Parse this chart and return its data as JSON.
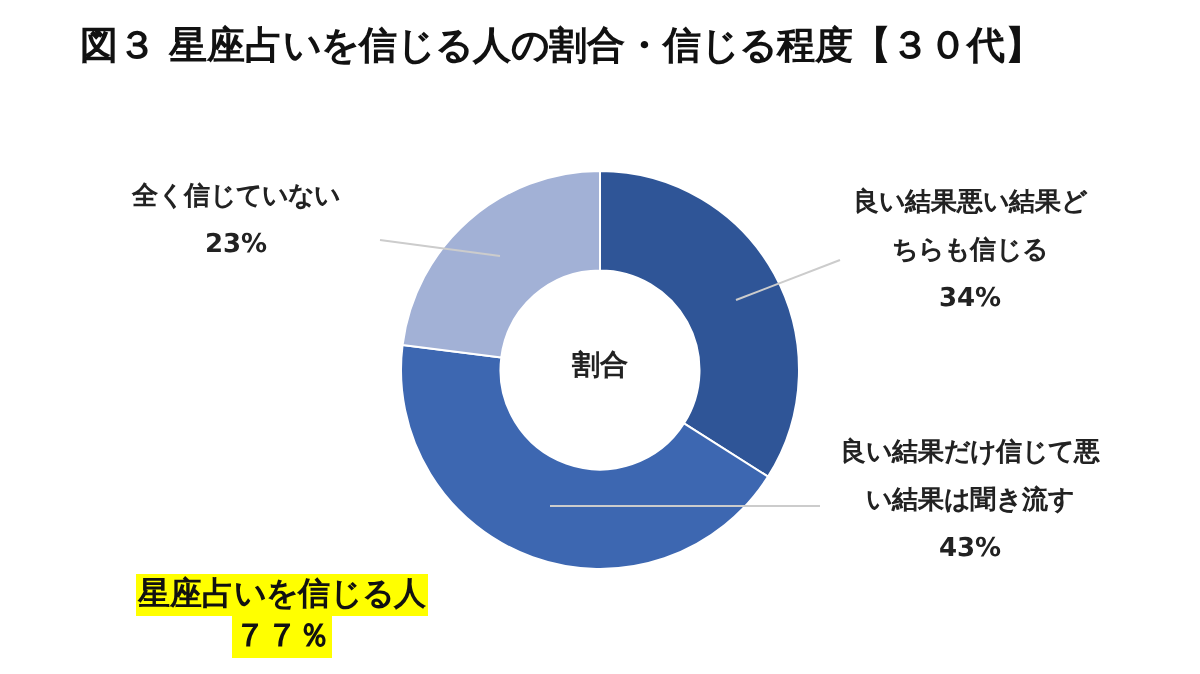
{
  "chart_data": {
    "type": "donut",
    "title": "図３ 星座占いを信じる人の割合・信じる程度【３０代】",
    "categories": [
      "良い結果悪い結果どちらも信じる",
      "良い結果だけ信じて悪い結果は聞き流す",
      "全く信じていない"
    ],
    "values": [
      34,
      43,
      23
    ],
    "colors": [
      "#2f5597",
      "#3d67b1",
      "#a2b1d6"
    ],
    "value_labels": [
      "34%",
      "43%",
      "23%"
    ],
    "annotations": [
      "割合",
      "星座占いを信じる人",
      "７７％"
    ],
    "legend": false
  }
}
